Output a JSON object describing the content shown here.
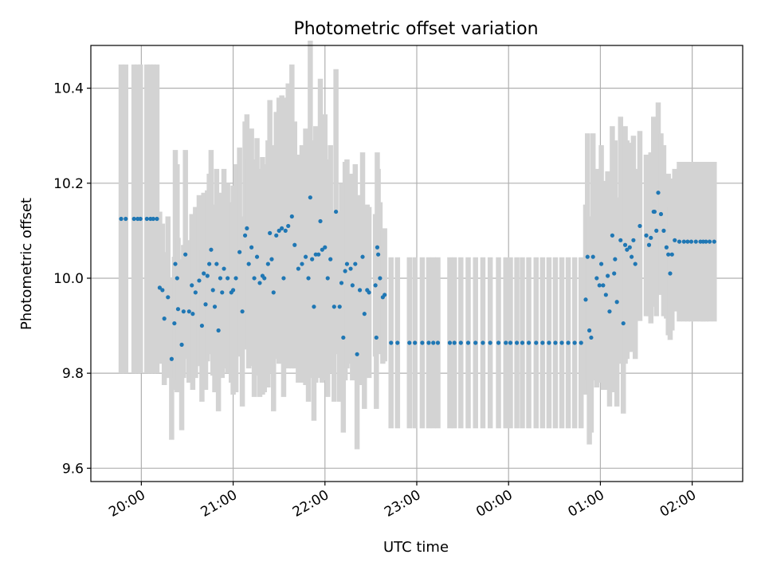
{
  "chart_data": {
    "type": "scatter",
    "title": "Photometric offset variation",
    "xlabel": "UTC time",
    "ylabel": "Photometric offset",
    "x_unit": "hours past 20:00 UTC",
    "xlim": [
      -0.55,
      6.55
    ],
    "ylim": [
      9.572,
      10.49
    ],
    "xticks": [
      {
        "value": 0,
        "label": "20:00"
      },
      {
        "value": 1,
        "label": "21:00"
      },
      {
        "value": 2,
        "label": "22:00"
      },
      {
        "value": 3,
        "label": "23:00"
      },
      {
        "value": 4,
        "label": "00:00"
      },
      {
        "value": 5,
        "label": "01:00"
      },
      {
        "value": 6,
        "label": "02:00"
      }
    ],
    "yticks": [
      {
        "value": 9.6,
        "label": "9.6"
      },
      {
        "value": 9.8,
        "label": "9.8"
      },
      {
        "value": 10.0,
        "label": "10.0"
      },
      {
        "value": 10.2,
        "label": "10.2"
      },
      {
        "value": 10.4,
        "label": "10.4"
      }
    ],
    "grid": true,
    "point_color": "#1f77b4",
    "errorbar_color": "#d3d3d3",
    "points": [
      [
        -0.22,
        10.125,
        0.325
      ],
      [
        -0.17,
        10.125,
        0.325
      ],
      [
        -0.08,
        10.125,
        0.325
      ],
      [
        -0.04,
        10.125,
        0.325
      ],
      [
        -0.01,
        10.125,
        0.325
      ],
      [
        0.06,
        10.125,
        0.325
      ],
      [
        0.1,
        10.125,
        0.325
      ],
      [
        0.13,
        10.125,
        0.325
      ],
      [
        0.17,
        10.125,
        0.325
      ],
      [
        0.2,
        9.98,
        0.16
      ],
      [
        0.23,
        9.975,
        0.14
      ],
      [
        0.25,
        9.915,
        0.14
      ],
      [
        0.29,
        9.96,
        0.17
      ],
      [
        0.33,
        9.83,
        0.17
      ],
      [
        0.36,
        9.905,
        0.14
      ],
      [
        0.37,
        10.03,
        0.24
      ],
      [
        0.39,
        10.0,
        0.24
      ],
      [
        0.4,
        9.935,
        0.15
      ],
      [
        0.44,
        9.86,
        0.18
      ],
      [
        0.46,
        9.93,
        0.14
      ],
      [
        0.48,
        10.05,
        0.22
      ],
      [
        0.52,
        9.93,
        0.15
      ],
      [
        0.55,
        9.985,
        0.15
      ],
      [
        0.56,
        9.925,
        0.16
      ],
      [
        0.59,
        9.97,
        0.18
      ],
      [
        0.63,
        9.995,
        0.18
      ],
      [
        0.66,
        9.9,
        0.16
      ],
      [
        0.68,
        10.01,
        0.17
      ],
      [
        0.7,
        9.945,
        0.18
      ],
      [
        0.72,
        10.005,
        0.18
      ],
      [
        0.74,
        10.03,
        0.19
      ],
      [
        0.76,
        10.06,
        0.21
      ],
      [
        0.78,
        9.975,
        0.18
      ],
      [
        0.8,
        9.94,
        0.18
      ],
      [
        0.82,
        10.03,
        0.2
      ],
      [
        0.84,
        9.89,
        0.17
      ],
      [
        0.86,
        10.0,
        0.18
      ],
      [
        0.88,
        9.97,
        0.18
      ],
      [
        0.9,
        10.02,
        0.21
      ],
      [
        0.94,
        10.0,
        0.2
      ],
      [
        0.98,
        9.97,
        0.19
      ],
      [
        1.0,
        9.975,
        0.22
      ],
      [
        1.03,
        10.0,
        0.24
      ],
      [
        1.07,
        10.055,
        0.22
      ],
      [
        1.1,
        9.93,
        0.2
      ],
      [
        1.13,
        10.09,
        0.24
      ],
      [
        1.15,
        10.105,
        0.24
      ],
      [
        1.17,
        10.03,
        0.22
      ],
      [
        1.2,
        10.065,
        0.25
      ],
      [
        1.23,
        10.0,
        0.25
      ],
      [
        1.26,
        10.045,
        0.25
      ],
      [
        1.29,
        9.99,
        0.24
      ],
      [
        1.32,
        10.005,
        0.25
      ],
      [
        1.34,
        10.0,
        0.24
      ],
      [
        1.38,
        10.03,
        0.26
      ],
      [
        1.4,
        10.095,
        0.28
      ],
      [
        1.42,
        10.04,
        0.24
      ],
      [
        1.44,
        9.97,
        0.25
      ],
      [
        1.47,
        10.09,
        0.26
      ],
      [
        1.5,
        10.1,
        0.28
      ],
      [
        1.53,
        10.105,
        0.28
      ],
      [
        1.55,
        10.0,
        0.25
      ],
      [
        1.57,
        10.1,
        0.28
      ],
      [
        1.6,
        10.11,
        0.3
      ],
      [
        1.64,
        10.13,
        0.32
      ],
      [
        1.67,
        10.07,
        0.26
      ],
      [
        1.71,
        10.02,
        0.24
      ],
      [
        1.75,
        10.03,
        0.25
      ],
      [
        1.79,
        10.045,
        0.27
      ],
      [
        1.82,
        10.0,
        0.26
      ],
      [
        1.84,
        10.17,
        0.33
      ],
      [
        1.86,
        10.04,
        0.25
      ],
      [
        1.88,
        9.94,
        0.24
      ],
      [
        1.9,
        10.05,
        0.27
      ],
      [
        1.93,
        10.05,
        0.26
      ],
      [
        1.95,
        10.12,
        0.3
      ],
      [
        1.97,
        10.06,
        0.28
      ],
      [
        2.0,
        10.065,
        0.28
      ],
      [
        2.03,
        10.0,
        0.25
      ],
      [
        2.06,
        10.04,
        0.24
      ],
      [
        2.1,
        9.94,
        0.2
      ],
      [
        2.12,
        10.14,
        0.3
      ],
      [
        2.16,
        9.94,
        0.2
      ],
      [
        2.18,
        9.99,
        0.21
      ],
      [
        2.2,
        9.875,
        0.2
      ],
      [
        2.22,
        10.015,
        0.23
      ],
      [
        2.24,
        10.03,
        0.22
      ],
      [
        2.28,
        10.02,
        0.2
      ],
      [
        2.3,
        9.985,
        0.2
      ],
      [
        2.33,
        10.03,
        0.21
      ],
      [
        2.35,
        9.84,
        0.2
      ],
      [
        2.38,
        9.975,
        0.2
      ],
      [
        2.41,
        10.045,
        0.22
      ],
      [
        2.43,
        9.925,
        0.2
      ],
      [
        2.46,
        9.975,
        0.18
      ],
      [
        2.48,
        9.97,
        0.18
      ],
      [
        2.55,
        9.985,
        0.15
      ],
      [
        2.56,
        9.875,
        0.15
      ],
      [
        2.57,
        10.065,
        0.2
      ],
      [
        2.58,
        10.05,
        0.18
      ],
      [
        2.6,
        10.0,
        0.16
      ],
      [
        2.63,
        9.96,
        0.14
      ],
      [
        2.65,
        9.965,
        0.14
      ],
      [
        2.72,
        9.864,
        0.18
      ],
      [
        2.79,
        9.864,
        0.18
      ],
      [
        2.92,
        9.864,
        0.18
      ],
      [
        2.98,
        9.864,
        0.18
      ],
      [
        3.06,
        9.864,
        0.18
      ],
      [
        3.13,
        9.864,
        0.18
      ],
      [
        3.18,
        9.864,
        0.18
      ],
      [
        3.23,
        9.864,
        0.18
      ],
      [
        3.36,
        9.864,
        0.18
      ],
      [
        3.41,
        9.864,
        0.18
      ],
      [
        3.48,
        9.864,
        0.18
      ],
      [
        3.56,
        9.864,
        0.18
      ],
      [
        3.64,
        9.864,
        0.18
      ],
      [
        3.72,
        9.864,
        0.18
      ],
      [
        3.8,
        9.864,
        0.18
      ],
      [
        3.89,
        9.864,
        0.18
      ],
      [
        3.97,
        9.864,
        0.18
      ],
      [
        4.02,
        9.864,
        0.18
      ],
      [
        4.09,
        9.864,
        0.18
      ],
      [
        4.15,
        9.864,
        0.18
      ],
      [
        4.22,
        9.864,
        0.18
      ],
      [
        4.3,
        9.864,
        0.18
      ],
      [
        4.37,
        9.864,
        0.18
      ],
      [
        4.44,
        9.864,
        0.18
      ],
      [
        4.51,
        9.864,
        0.18
      ],
      [
        4.58,
        9.864,
        0.18
      ],
      [
        4.65,
        9.864,
        0.18
      ],
      [
        4.72,
        9.864,
        0.18
      ],
      [
        4.79,
        9.864,
        0.18
      ],
      [
        4.84,
        9.955,
        0.2
      ],
      [
        4.86,
        10.045,
        0.26
      ],
      [
        4.88,
        9.89,
        0.24
      ],
      [
        4.9,
        9.875,
        0.2
      ],
      [
        4.92,
        10.045,
        0.26
      ],
      [
        4.96,
        10.0,
        0.23
      ],
      [
        4.99,
        9.985,
        0.2
      ],
      [
        5.01,
        10.03,
        0.25
      ],
      [
        5.03,
        9.985,
        0.22
      ],
      [
        5.06,
        9.965,
        0.2
      ],
      [
        5.08,
        10.005,
        0.22
      ],
      [
        5.1,
        9.93,
        0.2
      ],
      [
        5.13,
        10.09,
        0.23
      ],
      [
        5.15,
        10.01,
        0.25
      ],
      [
        5.16,
        10.04,
        0.25
      ],
      [
        5.18,
        9.95,
        0.22
      ],
      [
        5.22,
        10.08,
        0.26
      ],
      [
        5.25,
        9.905,
        0.19
      ],
      [
        5.27,
        10.07,
        0.25
      ],
      [
        5.29,
        10.06,
        0.23
      ],
      [
        5.32,
        10.065,
        0.22
      ],
      [
        5.34,
        10.045,
        0.2
      ],
      [
        5.36,
        10.08,
        0.22
      ],
      [
        5.38,
        10.03,
        0.2
      ],
      [
        5.43,
        10.11,
        0.2
      ],
      [
        5.5,
        10.09,
        0.17
      ],
      [
        5.53,
        10.07,
        0.15
      ],
      [
        5.55,
        10.085,
        0.18
      ],
      [
        5.58,
        10.14,
        0.2
      ],
      [
        5.59,
        10.14,
        0.18
      ],
      [
        5.61,
        10.1,
        0.18
      ],
      [
        5.63,
        10.18,
        0.19
      ],
      [
        5.66,
        10.135,
        0.17
      ],
      [
        5.69,
        10.1,
        0.18
      ],
      [
        5.72,
        10.065,
        0.15
      ],
      [
        5.74,
        10.05,
        0.17
      ],
      [
        5.76,
        10.01,
        0.14
      ],
      [
        5.78,
        10.05,
        0.16
      ],
      [
        5.81,
        10.08,
        0.15
      ],
      [
        5.86,
        10.077,
        0.168
      ],
      [
        5.91,
        10.077,
        0.168
      ],
      [
        5.95,
        10.077,
        0.168
      ],
      [
        5.99,
        10.077,
        0.168
      ],
      [
        6.04,
        10.077,
        0.168
      ],
      [
        6.09,
        10.077,
        0.168
      ],
      [
        6.12,
        10.077,
        0.168
      ],
      [
        6.15,
        10.077,
        0.168
      ],
      [
        6.19,
        10.077,
        0.168
      ],
      [
        6.24,
        10.077,
        0.168
      ]
    ]
  }
}
